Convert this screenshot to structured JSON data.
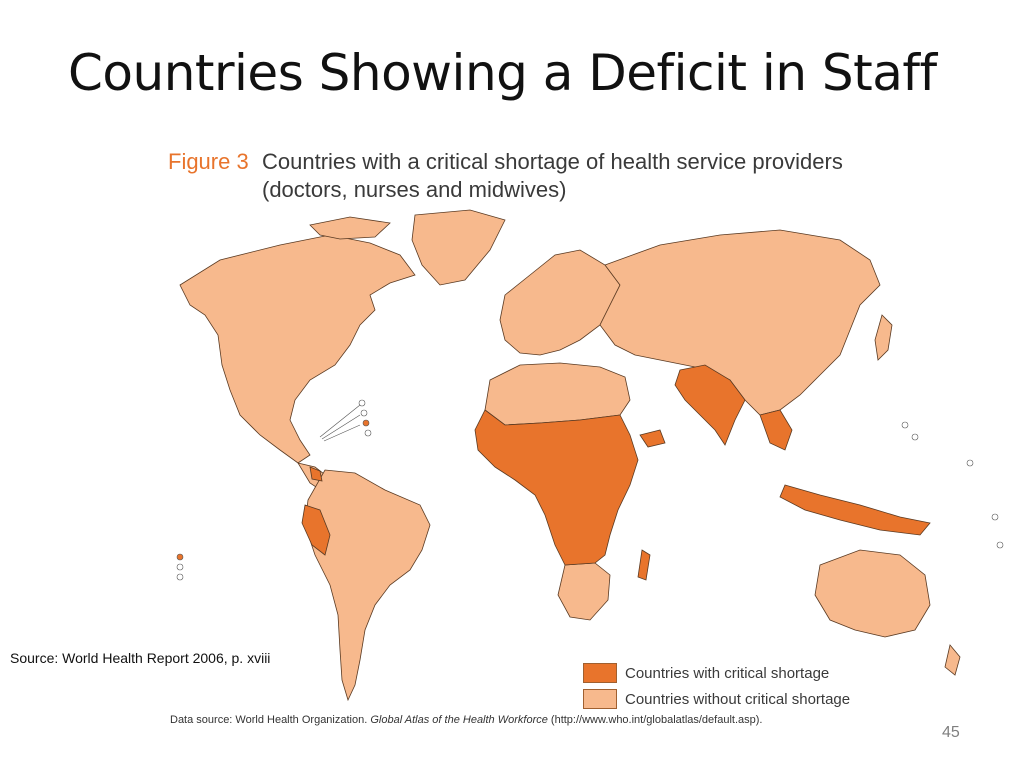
{
  "slide": {
    "title": "Countries Showing a Deficit in Staff",
    "page_number": "45",
    "source": "Source: World Health Report 2006, p. xviii"
  },
  "figure": {
    "number": "Figure 3",
    "caption_line1": "Countries with a critical shortage of health service providers",
    "caption_line2": "(doctors, nurses and midwives)",
    "data_source_prefix": "Data source: World Health Organization. ",
    "data_source_title": "Global Atlas of the Health Workforce",
    "data_source_suffix": " (http://www.who.int/globalatlas/default.asp)."
  },
  "legend": {
    "items": [
      {
        "label": "Countries with critical shortage",
        "color": "#e8742c"
      },
      {
        "label": "Countries without critical shortage",
        "color": "#f7b98d"
      }
    ]
  },
  "colors": {
    "critical": "#e8742c",
    "non_critical": "#f7b98d",
    "border": "#5a3a22",
    "title": "#111111",
    "figure_number": "#e8742c"
  }
}
